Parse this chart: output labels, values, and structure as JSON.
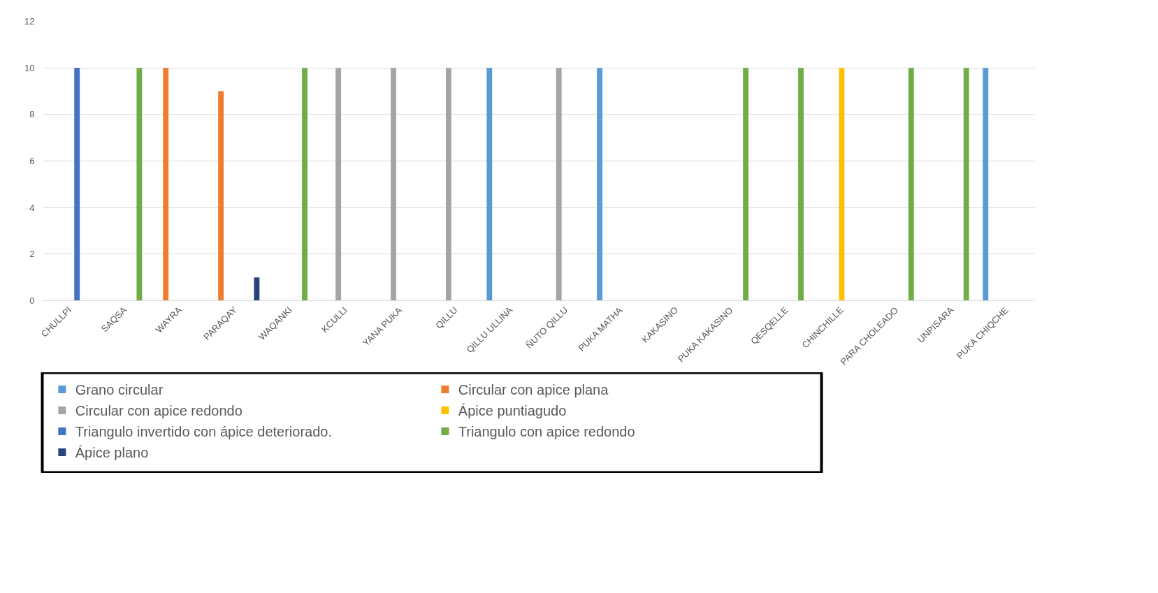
{
  "chart_data": {
    "type": "bar",
    "categories": [
      "CHULLPI",
      "SAQSA",
      "WAYRA",
      "PARAQAY",
      "WAQANKI",
      "KCULLI",
      "YANA PUKA",
      "QILLU",
      "QILLU ULLINA",
      "ÑUTO QILLU",
      "PUKA MATHA",
      "KAKASINO",
      "PUKA KAKASINO",
      "QESQELLE",
      "CHINCHILLE",
      "PARA CHOLEADO",
      "UNPISARA",
      "PUKA CHIQCHE"
    ],
    "series": [
      {
        "name": "Grano circular",
        "color": "#5b9bd5",
        "values": [
          null,
          null,
          null,
          null,
          null,
          null,
          null,
          null,
          10,
          null,
          10,
          null,
          null,
          null,
          null,
          null,
          null,
          10
        ]
      },
      {
        "name": "Circular con apice plana",
        "color": "#ed7d31",
        "values": [
          null,
          null,
          10,
          9,
          null,
          null,
          null,
          null,
          null,
          null,
          null,
          null,
          null,
          null,
          null,
          null,
          null,
          null
        ]
      },
      {
        "name": "Circular con apice redondo",
        "color": "#a5a5a5",
        "values": [
          null,
          null,
          null,
          null,
          null,
          10,
          10,
          10,
          null,
          10,
          null,
          null,
          null,
          null,
          null,
          null,
          null,
          null
        ]
      },
      {
        "name": "Ápice  puntiagudo",
        "color": "#ffc000",
        "values": [
          null,
          null,
          null,
          null,
          null,
          null,
          null,
          null,
          null,
          null,
          null,
          null,
          null,
          null,
          10,
          null,
          null,
          null
        ]
      },
      {
        "name": "Triangulo invertido con ápice deteriorado.",
        "color": "#4472c4",
        "values": [
          10,
          null,
          null,
          null,
          null,
          null,
          null,
          null,
          null,
          null,
          null,
          null,
          null,
          null,
          null,
          null,
          null,
          null
        ]
      },
      {
        "name": "Triangulo con apice redondo",
        "color": "#70ad47",
        "values": [
          null,
          10,
          null,
          null,
          10,
          null,
          null,
          null,
          null,
          null,
          null,
          null,
          10,
          10,
          null,
          10,
          10,
          null
        ]
      },
      {
        "name": "Ápice plano",
        "color": "#264478",
        "values": [
          null,
          null,
          null,
          1,
          null,
          null,
          null,
          null,
          null,
          null,
          null,
          null,
          null,
          null,
          null,
          null,
          null,
          null
        ]
      }
    ],
    "ylim": [
      0,
      12
    ],
    "yticks": [
      0,
      2,
      4,
      6,
      8,
      10,
      12
    ],
    "grid": "y",
    "legend": "bottom"
  }
}
